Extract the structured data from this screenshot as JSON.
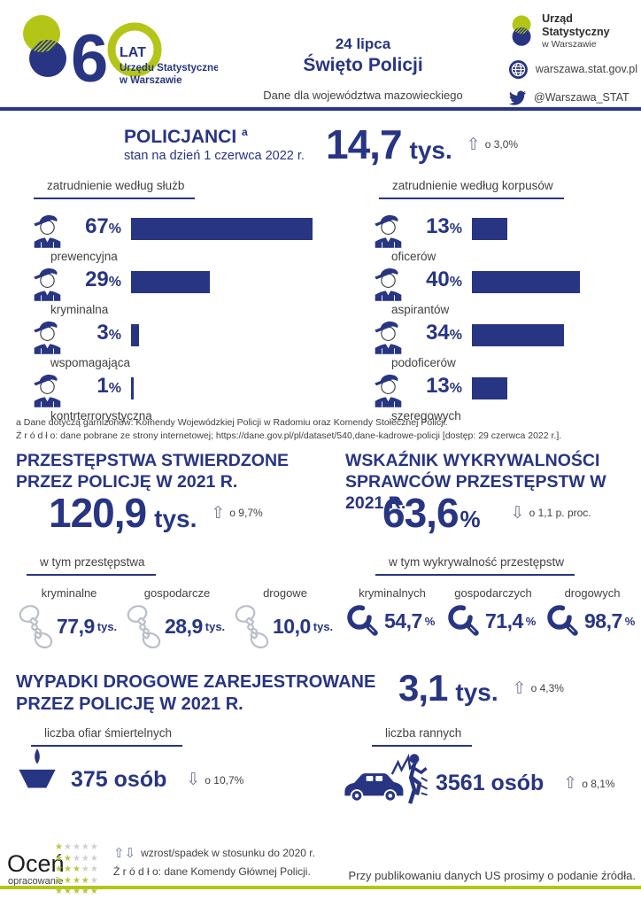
{
  "colors": {
    "navy": "#283583",
    "lime": "#b3c618",
    "text_gray": "#414042"
  },
  "icons": {
    "up": "⇧",
    "down": "⇩",
    "up_down": "⇧⇩",
    "star": "★"
  },
  "header": {
    "logo60": {
      "digit_six": "6",
      "lat": "LAT",
      "org_line1": "Urzędu Statystycznego",
      "org_line2": "w Warszawie"
    },
    "event_date": "24 lipca",
    "event_name": "Święto Policji",
    "subtitle": "Dane dla województwa mazowieckiego",
    "office_line1": "Urząd Statystyczny",
    "office_line2": "w Warszawie",
    "website": "warszawa.stat.gov.pl",
    "twitter": "@Warszawa_STAT"
  },
  "policemen": {
    "title": "POLICJANCI",
    "footnote_marker": "a",
    "subtitle": "stan na dzień 1 czerwca 2022 r.",
    "value": "14,7",
    "unit": "tys.",
    "change": "o 3,0%"
  },
  "chart_data": [
    {
      "type": "bar",
      "title": "zatrudnienie według służb",
      "categories": [
        "prewencyjna",
        "kryminalna",
        "wspomagająca",
        "kontrterrorystyczna"
      ],
      "values": [
        67,
        29,
        3,
        1
      ],
      "unit": "%",
      "xlim": [
        0,
        67
      ],
      "orientation": "horizontal"
    },
    {
      "type": "bar",
      "title": "zatrudnienie według korpusów",
      "categories": [
        "oficerów",
        "aspirantów",
        "podoficerów",
        "szeregowych"
      ],
      "values": [
        13,
        40,
        34,
        13
      ],
      "unit": "%",
      "xlim": [
        0,
        40
      ],
      "orientation": "horizontal"
    }
  ],
  "footnotes": {
    "line1": "a Dane dotyczą garnizonów: Komendy Wojewódzkiej Policji w Radomiu oraz Komendy Stołecznej Policji.",
    "line2": "Ź r ó d ł o: dane pobrane ze strony internetowej; https://dane.gov.pl/pl/dataset/540,dane-kadrowe-policji [dostęp: 29 czerwca 2022 r.]."
  },
  "crimes": {
    "title_line1": "PRZESTĘPSTWA STWIERDZONE",
    "title_line2": "PRZEZ POLICJĘ W 2021 R.",
    "value": "120,9",
    "unit": "tys.",
    "change": "o 9,7%",
    "sub_label": "w tym przestępstwa",
    "items": [
      {
        "label": "kryminalne",
        "value": "77,9",
        "unit": "tys."
      },
      {
        "label": "gospodarcze",
        "value": "28,9",
        "unit": "tys."
      },
      {
        "label": "drogowe",
        "value": "10,0",
        "unit": "tys."
      }
    ]
  },
  "detection": {
    "title_line1": "WSKAŹNIK WYKRYWALNOŚCI",
    "title_line2": "SPRAWCÓW PRZESTĘPSTW W 2021 R.",
    "value": "63,6",
    "unit": "%",
    "change": "o 1,1 p. proc.",
    "sub_label": "w tym wykrywalność przestępstw",
    "items": [
      {
        "label": "kryminalnych",
        "value": "54,7",
        "unit": "%"
      },
      {
        "label": "gospodarczych",
        "value": "71,4",
        "unit": "%"
      },
      {
        "label": "drogowych",
        "value": "98,7",
        "unit": "%"
      }
    ]
  },
  "accidents": {
    "title_line1": "WYPADKI DROGOWE ZAREJESTROWANE",
    "title_line2": "PRZEZ POLICJĘ W 2021 R.",
    "value": "3,1",
    "unit": "tys.",
    "change": "o 4,3%",
    "deaths": {
      "label": "liczba ofiar śmiertelnych",
      "value": "375 osób",
      "change": "o 10,7%"
    },
    "injured": {
      "label": "liczba rannych",
      "value": "3561 osób",
      "change": "o 8,1%"
    }
  },
  "footer": {
    "rate_word1": "Oceń",
    "rate_word2": "opracowanie",
    "legend": "wzrost/spadek w stosunku do 2020 r.",
    "source": "Ź r ó d ł o: dane Komendy Głównej Policji.",
    "pub_note": "Przy publikowaniu danych US prosimy o podanie źródła."
  }
}
